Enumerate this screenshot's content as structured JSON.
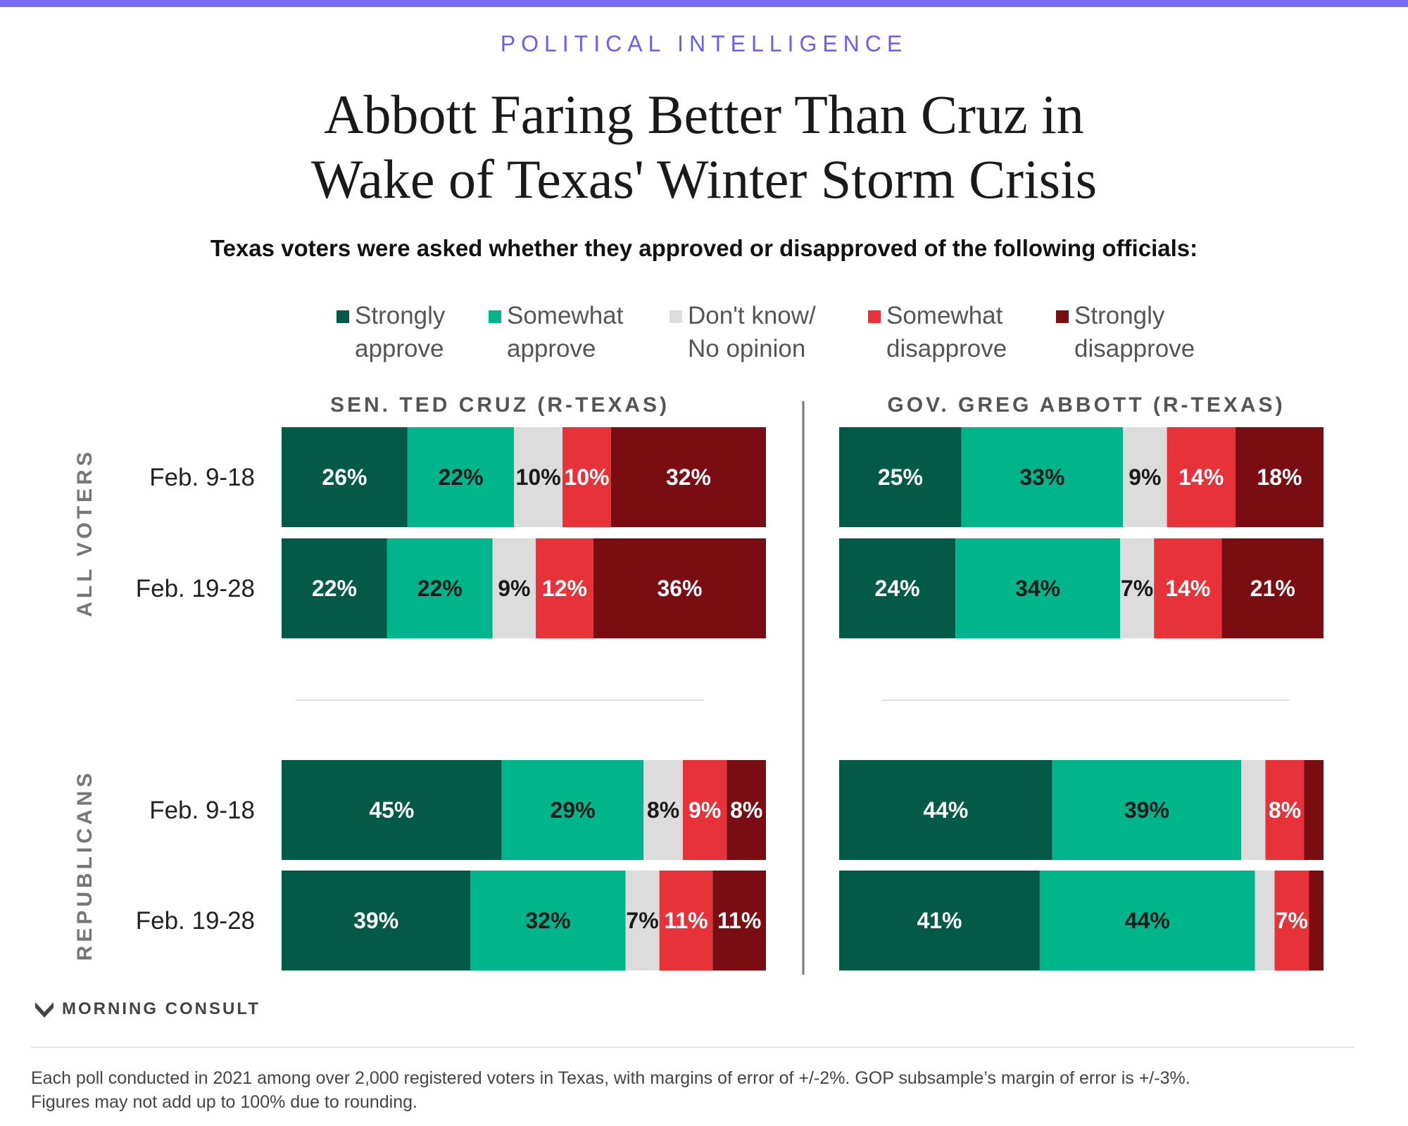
{
  "header": {
    "kicker": "POLITICAL INTELLIGENCE",
    "title_line1": "Abbott Faring Better Than Cruz in",
    "title_line2": "Wake of Texas' Winter Storm Crisis",
    "subtitle": "Texas voters were asked whether they approved or disapproved of the following officials:"
  },
  "legend": [
    {
      "label": "Strongly\napprove",
      "color": "#035a46"
    },
    {
      "label": "Somewhat\napprove",
      "color": "#00b48c"
    },
    {
      "label": "Don't know/\nNo opinion",
      "color": "#dcdcdc"
    },
    {
      "label": "Somewhat\ndisapprove",
      "color": "#e8323a"
    },
    {
      "label": "Strongly\ndisapprove",
      "color": "#7a0d12"
    }
  ],
  "chart_data": {
    "type": "bar",
    "orientation": "horizontal-stacked",
    "categories": [
      "Strongly approve",
      "Somewhat approve",
      "Don't know/ No opinion",
      "Somewhat disapprove",
      "Strongly disapprove"
    ],
    "colors": [
      "#035a46",
      "#00b48c",
      "#dcdcdc",
      "#e8323a",
      "#7a0d12"
    ],
    "label_colors": [
      "#ffffff",
      "#1a1a1a",
      "#1a1a1a",
      "#ffffff",
      "#ffffff"
    ],
    "xlim": [
      0,
      100
    ],
    "groups": [
      "ALL VOTERS",
      "REPUBLICANS"
    ],
    "row_labels": [
      "Feb. 9-18",
      "Feb. 19-28"
    ],
    "panels": [
      {
        "title": "SEN. TED CRUZ (R-TEXAS)",
        "rows": [
          {
            "group": "ALL VOTERS",
            "label": "Feb. 9-18",
            "values": [
              26,
              22,
              10,
              10,
              32
            ],
            "labels": [
              "26%",
              "22%",
              "10%",
              "10%",
              "32%"
            ]
          },
          {
            "group": "ALL VOTERS",
            "label": "Feb. 19-28",
            "values": [
              22,
              22,
              9,
              12,
              36
            ],
            "labels": [
              "22%",
              "22%",
              "9%",
              "12%",
              "36%"
            ]
          },
          {
            "group": "REPUBLICANS",
            "label": "Feb. 9-18",
            "values": [
              45,
              29,
              8,
              9,
              8
            ],
            "labels": [
              "45%",
              "29%",
              "8%",
              "9%",
              "8%"
            ]
          },
          {
            "group": "REPUBLICANS",
            "label": "Feb. 19-28",
            "values": [
              39,
              32,
              7,
              11,
              11
            ],
            "labels": [
              "39%",
              "32%",
              "7%",
              "11%",
              "11%"
            ]
          }
        ]
      },
      {
        "title": "GOV. GREG ABBOTT (R-TEXAS)",
        "rows": [
          {
            "group": "ALL VOTERS",
            "label": "Feb. 9-18",
            "values": [
              25,
              33,
              9,
              14,
              18
            ],
            "labels": [
              "25%",
              "33%",
              "9%",
              "14%",
              "18%"
            ]
          },
          {
            "group": "ALL VOTERS",
            "label": "Feb. 19-28",
            "values": [
              24,
              34,
              7,
              14,
              21
            ],
            "labels": [
              "24%",
              "34%",
              "7%",
              "14%",
              "21%"
            ]
          },
          {
            "group": "REPUBLICANS",
            "label": "Feb. 9-18",
            "values": [
              44,
              39,
              5,
              8,
              4
            ],
            "labels": [
              "44%",
              "39%",
              "",
              "8%",
              ""
            ]
          },
          {
            "group": "REPUBLICANS",
            "label": "Feb. 19-28",
            "values": [
              41,
              44,
              4,
              7,
              3
            ],
            "labels": [
              "41%",
              "44%",
              "",
              "7%",
              ""
            ]
          }
        ]
      }
    ]
  },
  "footer": {
    "brand": "MORNING CONSULT",
    "note_line1": "Each poll conducted in 2021 among over 2,000 registered voters in Texas, with margins of error of +/-2%. GOP subsample’s margin of error is +/-3%.",
    "note_line2": "Figures may not add up to 100% due to rounding."
  }
}
